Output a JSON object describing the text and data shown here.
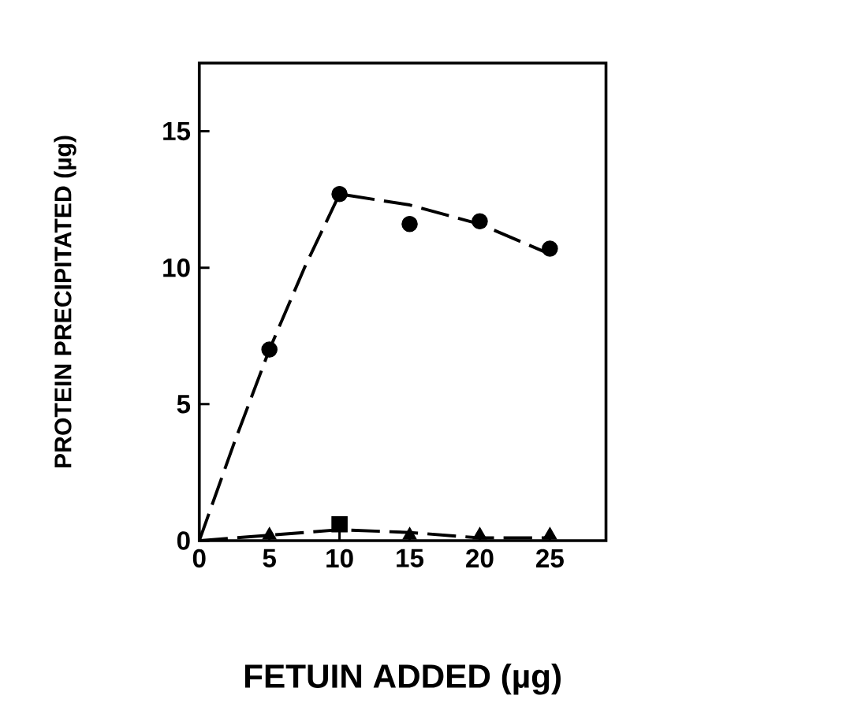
{
  "chart_data": {
    "type": "scatter",
    "xlabel": "FETUIN ADDED (µg)",
    "ylabel": "PROTEIN PRECIPITATED (µg)",
    "xlim": [
      0,
      29
    ],
    "ylim": [
      0,
      17.5
    ],
    "xticks": [
      0,
      5,
      10,
      15,
      20,
      25
    ],
    "yticks": [
      0,
      5,
      10,
      15
    ],
    "series": [
      {
        "type": "line",
        "line_style": "dashed",
        "marker": "none",
        "color": "#000000",
        "x": [
          0,
          2.5,
          5,
          7.5,
          10,
          15,
          20,
          25
        ],
        "values": [
          0,
          3.6,
          7.0,
          10.0,
          12.7,
          12.3,
          11.6,
          10.5
        ]
      },
      {
        "marker": "circle",
        "color": "#000000",
        "x": [
          5,
          10,
          15,
          20,
          25
        ],
        "values": [
          7,
          12.7,
          11.6,
          11.7,
          10.7
        ]
      },
      {
        "type": "line",
        "line_style": "dashed",
        "marker": "none",
        "color": "#000000",
        "x": [
          0,
          5,
          10,
          15,
          20,
          25
        ],
        "values": [
          0,
          0.2,
          0.4,
          0.3,
          0.1,
          0.1
        ]
      },
      {
        "type": "scatter",
        "marker": "triangle",
        "color": "#000000",
        "x": [
          5,
          15,
          20,
          25
        ],
        "values": [
          0.2,
          0.2,
          0.2,
          0.2
        ]
      },
      {
        "type": "scatter",
        "marker": "square",
        "color": "#000000",
        "x": [
          10
        ],
        "values": [
          0.6
        ]
      }
    ]
  }
}
